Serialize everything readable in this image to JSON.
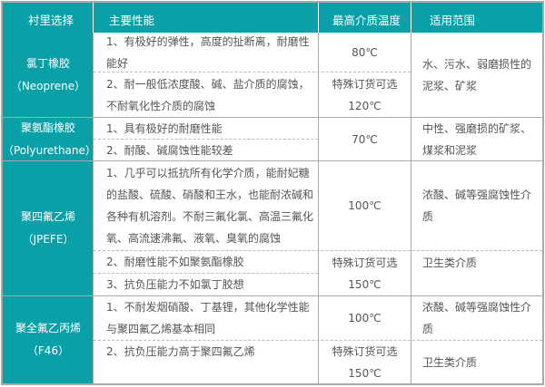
{
  "header": {
    "col1": "衬里选择",
    "col2": "主要性能",
    "col3": "最高介质温度",
    "col4": "适用范围"
  },
  "rows": [
    {
      "name": "氯丁橡胶",
      "code": "（Neoprene）",
      "props": [
        "1、有极好的弹性，高度的扯断离，耐磨性能好",
        "2、耐一般低浓度酸、碱、盐介质的腐蚀，不耐氧化性介质的腐蚀"
      ],
      "temp": [
        "80℃",
        "特殊订货可选",
        "120℃"
      ],
      "scope": [
        "水、污水、弱磨损性的泥浆、矿浆"
      ]
    },
    {
      "name": "聚氨酯橡胶",
      "code": "（Polyurethane）",
      "props": [
        "1、具有极好的耐磨性能",
        "2、耐酸、碱腐蚀性能较差"
      ],
      "temp": [
        "70℃"
      ],
      "scope": [
        "中性、强磨损的矿浆、煤浆和泥浆"
      ]
    },
    {
      "name": "聚四氟乙烯",
      "code": "（JPEFE）",
      "props": [
        "1、几乎可以抵抗所有化学介质，能耐妃糖的盐酸、硫酸、硝酸和王水，也能耐浓碱和各种有机溶剂。不耐三氟化氯、高温三氟化氧、高流速沸氟、液氧、臭氧的腐蚀",
        "2、耐磨性能不如聚氨酯橡胶",
        "3、抗负压能力不如氯丁胶想"
      ],
      "temp": [
        "100℃",
        "特殊订货可选",
        "150℃"
      ],
      "scope": [
        "浓酸、碱等强腐蚀性介质",
        "卫生类介质"
      ]
    },
    {
      "name": "聚全氟乙丙烯",
      "code": "（F46）",
      "props": [
        "1、不耐发烟硝酸、丁基锂，其他化学性能与聚四氟乙烯基本相同",
        "2、抗负压能力高于聚四氟乙烯"
      ],
      "temp": [
        "100℃",
        "特殊订货可选",
        "150℃"
      ],
      "scope": [
        "浓酸、碱等强腐蚀性介质",
        "卫生类介质"
      ]
    }
  ],
  "colors": {
    "header_bg": "#0aa0a8",
    "border": "#a9a9a9"
  }
}
